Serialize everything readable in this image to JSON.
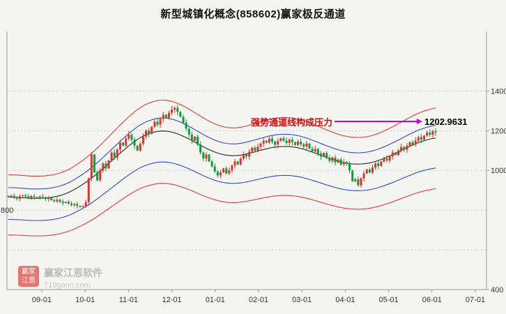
{
  "title": "新型城镇化概念(858602)赢家极反通道",
  "annotation": {
    "pressure_text": "强势通道线构成压力",
    "price_label": "1202.9631",
    "arrow_color": "#d400c8",
    "text_color": "#cc1111"
  },
  "watermark": {
    "logo_text": "赢家江恩",
    "brand": "赢家江恩软件",
    "domain": "710gann.com"
  },
  "colors": {
    "background": "#f4f4f1",
    "up_candle": "#d9332e",
    "down_candle": "#0e9b3a",
    "outer_channel": "#e03a3a",
    "inner_channel": "#2f49d1",
    "mid_line": "#222222",
    "grid": "#c8c8c8",
    "axis": "#999999"
  },
  "chart_data": {
    "type": "candlestick",
    "title": "新型城镇化概念(858602)赢家极反通道",
    "symbol": "858602",
    "x_ticks": [
      "09-01",
      "10-01",
      "11-01",
      "12-01",
      "01-01",
      "02-01",
      "03-01",
      "04-01",
      "05-01",
      "06-01",
      "07-01"
    ],
    "y_ticks_right": [
      1400,
      1200,
      1000,
      400
    ],
    "y_tick_left": 800,
    "gridline_values": [
      600,
      800,
      1000,
      1200,
      1400
    ],
    "ylim": [
      400,
      1700
    ],
    "grid": "horizontal-dotted",
    "legend_position": "none",
    "last_channel_resistance": 1202.9631,
    "closes": [
      868,
      872,
      865,
      858,
      870,
      875,
      869,
      862,
      871,
      866,
      860,
      868,
      864,
      856,
      861,
      850,
      844,
      852,
      843,
      836,
      842,
      833,
      826,
      831,
      822,
      816,
      820,
      840,
      960,
      1080,
      990,
      950,
      1000,
      1035,
      1010,
      1050,
      1090,
      1065,
      1105,
      1140,
      1125,
      1160,
      1180,
      1155,
      1125,
      1100,
      1135,
      1170,
      1200,
      1185,
      1220,
      1245,
      1230,
      1260,
      1280,
      1265,
      1290,
      1305,
      1315,
      1295,
      1270,
      1240,
      1210,
      1180,
      1150,
      1170,
      1130,
      1090,
      1060,
      1080,
      1045,
      1020,
      995,
      975,
      990,
      1010,
      985,
      1000,
      1025,
      1045,
      1030,
      1060,
      1080,
      1070,
      1095,
      1115,
      1100,
      1120,
      1135,
      1150,
      1140,
      1160,
      1145,
      1130,
      1148,
      1162,
      1150,
      1138,
      1155,
      1142,
      1128,
      1145,
      1132,
      1120,
      1135,
      1110,
      1095,
      1108,
      1085,
      1070,
      1088,
      1062,
      1048,
      1065,
      1040,
      1055,
      1030,
      1042,
      1035,
      1000,
      945,
      955,
      925,
      960,
      985,
      1005,
      990,
      1015,
      1035,
      1022,
      1045,
      1060,
      1050,
      1070,
      1090,
      1078,
      1100,
      1118,
      1105,
      1125,
      1142,
      1130,
      1150,
      1168,
      1155,
      1175,
      1190,
      1180,
      1198,
      1192
    ],
    "channel": {
      "red_up": 1.13,
      "blue_up": 1.055,
      "blue_low": 0.87,
      "red_low": 0.78,
      "red_color": "#e03a3a",
      "blue_color": "#2f49d1",
      "mid_color": "#222222"
    },
    "up_color": "#d9332e",
    "down_color": "#0e9b3a"
  }
}
